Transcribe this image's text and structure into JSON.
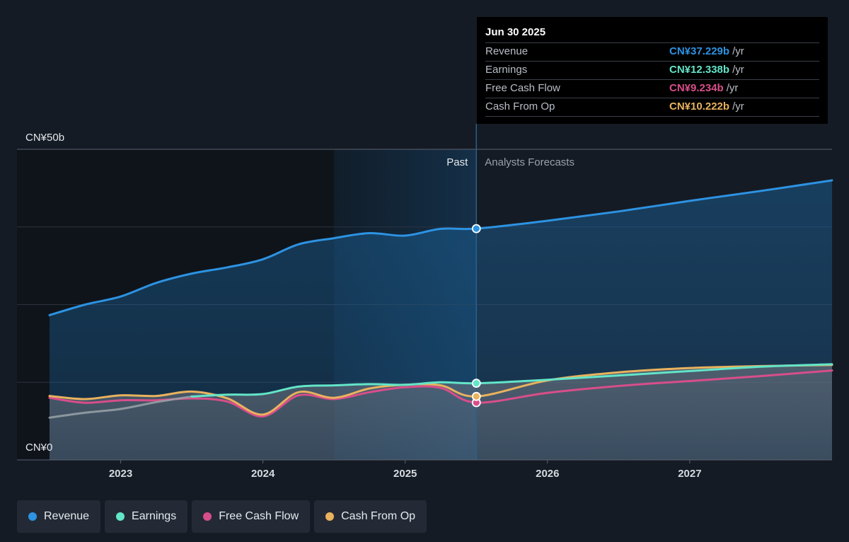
{
  "colors": {
    "background": "#151b24",
    "revenue": "#2d93e3",
    "earnings": "#63e5c8",
    "free_cash_flow": "#d84e8a",
    "cash_from_op": "#e9b25e"
  },
  "tooltip": {
    "date": "Jun 30 2025",
    "rows": [
      {
        "label": "Revenue",
        "value": "CN¥37.229b",
        "unit": "/yr"
      },
      {
        "label": "Earnings",
        "value": "CN¥12.338b",
        "unit": "/yr"
      },
      {
        "label": "Free Cash Flow",
        "value": "CN¥9.234b",
        "unit": "/yr"
      },
      {
        "label": "Cash From Op",
        "value": "CN¥10.222b",
        "unit": "/yr"
      }
    ]
  },
  "legend": [
    "Revenue",
    "Earnings",
    "Free Cash Flow",
    "Cash From Op"
  ],
  "chart_data": {
    "type": "area",
    "unit": "CN¥ billions",
    "ylim": [
      0,
      50
    ],
    "y_tick_labels": [
      "CN¥50b",
      "CN¥0"
    ],
    "xlim": [
      2022.5,
      2028.0
    ],
    "x_ticks": [
      2023,
      2024,
      2025,
      2026,
      2027
    ],
    "x_tick_labels": [
      "2023",
      "2024",
      "2025",
      "2026",
      "2027"
    ],
    "past_label": "Past",
    "forecast_label": "Analysts Forecasts",
    "divider_x": 2025.5,
    "highlight_start_x": 2024.5,
    "grid": true,
    "legend_position": "bottom",
    "series": [
      {
        "name": "Revenue",
        "x": [
          2022.5,
          2022.75,
          2023.0,
          2023.25,
          2023.5,
          2023.75,
          2024.0,
          2024.25,
          2024.5,
          2024.75,
          2025.0,
          2025.25,
          2025.5,
          2026.0,
          2026.5,
          2027.0,
          2027.5,
          2028.0
        ],
        "values": [
          23.3,
          25.0,
          26.3,
          28.5,
          30.0,
          31.0,
          32.3,
          34.7,
          35.7,
          36.5,
          36.1,
          37.2,
          37.23,
          38.5,
          40.0,
          41.7,
          43.3,
          45.0
        ]
      },
      {
        "name": "Earnings",
        "x": [
          2022.5,
          2022.75,
          2023.0,
          2023.25,
          2023.5,
          2023.75,
          2024.0,
          2024.25,
          2024.5,
          2024.75,
          2025.0,
          2025.25,
          2025.5,
          2026.0,
          2026.5,
          2027.0,
          2027.5,
          2028.0
        ],
        "values": [
          6.8,
          7.6,
          8.2,
          9.3,
          10.2,
          10.5,
          10.6,
          11.8,
          12.0,
          12.2,
          12.1,
          12.5,
          12.34,
          12.9,
          13.6,
          14.3,
          15.0,
          15.4
        ]
      },
      {
        "name": "Free Cash Flow",
        "x": [
          2022.5,
          2022.75,
          2023.0,
          2023.25,
          2023.5,
          2023.75,
          2024.0,
          2024.25,
          2024.5,
          2024.75,
          2025.0,
          2025.25,
          2025.5,
          2026.0,
          2026.5,
          2027.0,
          2027.5,
          2028.0
        ],
        "values": [
          10.0,
          9.2,
          9.6,
          9.6,
          9.9,
          9.4,
          7.0,
          10.4,
          9.8,
          10.9,
          11.7,
          11.6,
          9.23,
          10.8,
          11.9,
          12.7,
          13.5,
          14.4
        ]
      },
      {
        "name": "Cash From Op",
        "x": [
          2022.5,
          2022.75,
          2023.0,
          2023.25,
          2023.5,
          2023.75,
          2024.0,
          2024.25,
          2024.5,
          2024.75,
          2025.0,
          2025.25,
          2025.5,
          2026.0,
          2026.5,
          2027.0,
          2027.5,
          2028.0
        ],
        "values": [
          10.3,
          9.8,
          10.4,
          10.3,
          11.0,
          9.9,
          7.3,
          10.9,
          10.0,
          11.5,
          12.1,
          12.0,
          10.22,
          12.8,
          14.1,
          14.8,
          15.1,
          15.3
        ]
      }
    ]
  }
}
